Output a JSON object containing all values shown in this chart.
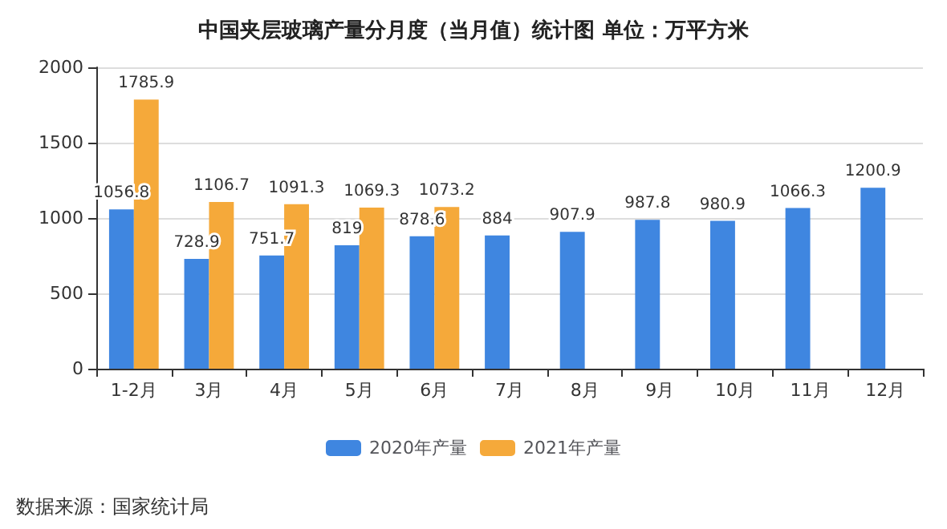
{
  "chart_data": {
    "type": "bar",
    "title": "中国夹层玻璃产量分月度（当月值）统计图 单位：万平方米",
    "categories": [
      "1-2月",
      "3月",
      "4月",
      "5月",
      "6月",
      "7月",
      "8月",
      "9月",
      "10月",
      "11月",
      "12月"
    ],
    "series": [
      {
        "name": "2020年产量",
        "color": "#3f86e0",
        "values": [
          1056.8,
          728.9,
          751.7,
          819,
          878.6,
          884,
          907.9,
          987.8,
          980.9,
          1066.3,
          1200.9
        ]
      },
      {
        "name": "2021年产量",
        "color": "#f5a93a",
        "values": [
          1785.9,
          1106.7,
          1091.3,
          1069.3,
          1073.2,
          null,
          null,
          null,
          null,
          null,
          null
        ]
      }
    ],
    "ylim": [
      0,
      2000
    ],
    "yticks": [
      0,
      500,
      1000,
      1500,
      2000
    ],
    "grid": "y",
    "legend": "bottom",
    "data_labels": true,
    "annotations": [
      "数据来源：国家统计局"
    ]
  }
}
